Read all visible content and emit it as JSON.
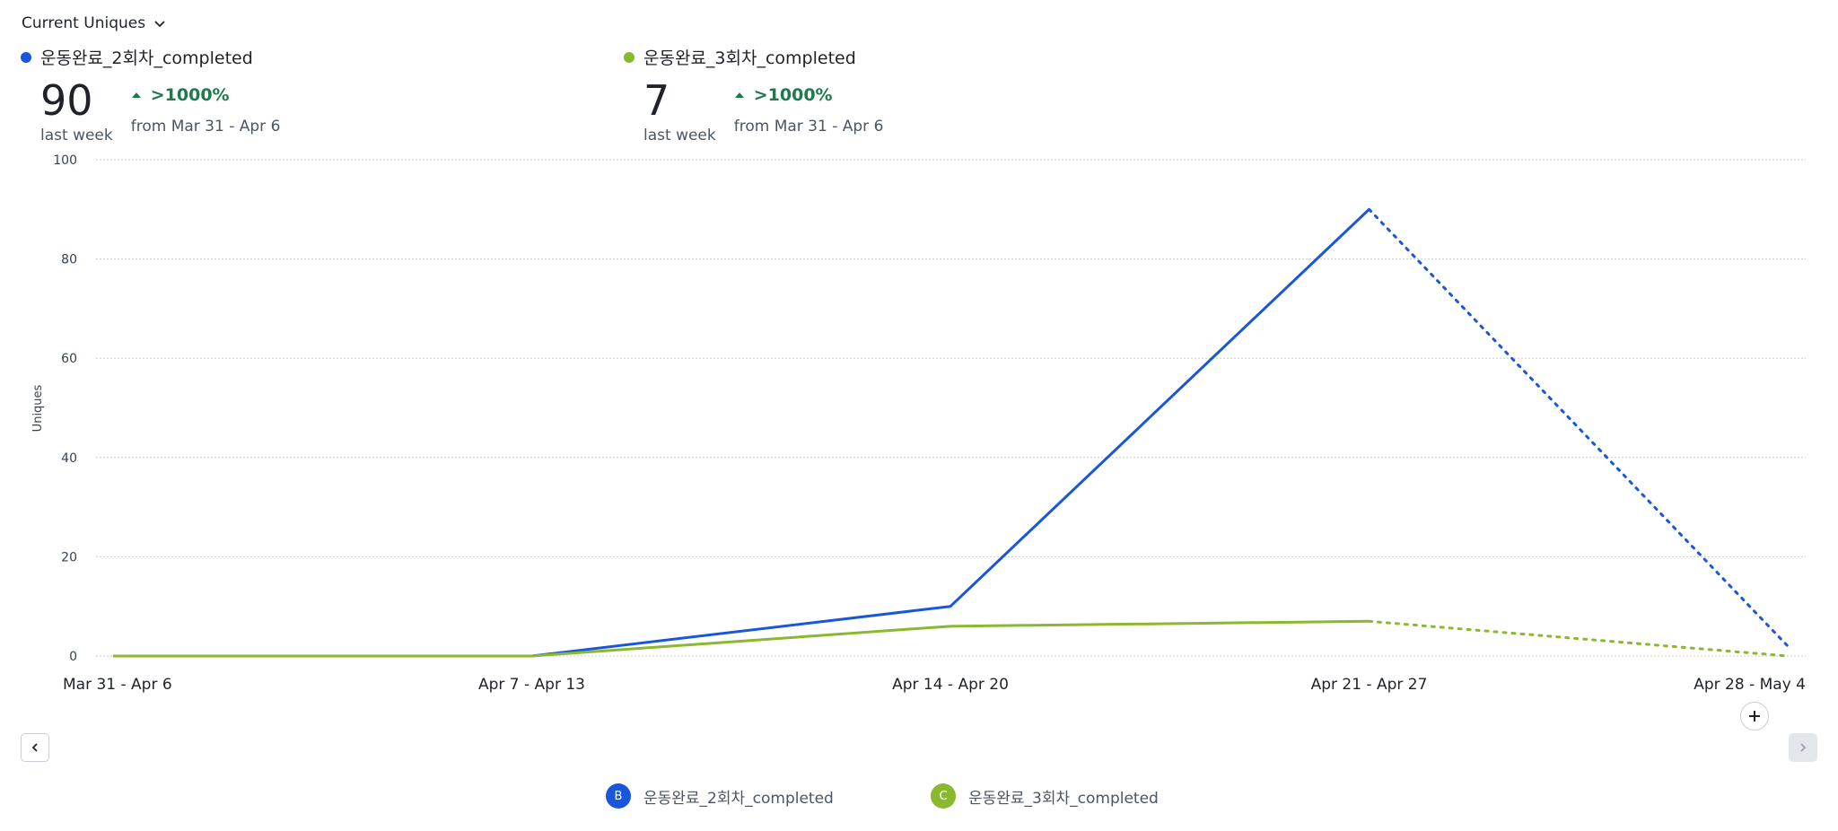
{
  "header": {
    "metric_label": "Current Uniques"
  },
  "summaries": [
    {
      "name": "운동완료_2회차_completed",
      "color": "#1a56db",
      "value": "90",
      "period": "last week",
      "delta": ">1000%",
      "delta_from": "from Mar 31 - Apr 6"
    },
    {
      "name": "운동완료_3회차_completed",
      "color": "#8ab82e",
      "value": "7",
      "period": "last week",
      "delta": ">1000%",
      "delta_from": "from Mar 31 - Apr 6"
    }
  ],
  "chart_data": {
    "type": "line",
    "ylabel": "Uniques",
    "ylim": [
      0,
      100
    ],
    "yticks": [
      0,
      20,
      40,
      60,
      80,
      100
    ],
    "grid": true,
    "categories": [
      "Mar 31 - Apr 6",
      "Apr 7 - Apr 13",
      "Apr 14 - Apr 20",
      "Apr 21 - Apr 27",
      "Apr 28 - May 4"
    ],
    "series": [
      {
        "name": "운동완료_2회차_completed",
        "values": [
          0,
          0,
          10,
          90,
          2
        ],
        "color": "#1a56db",
        "incomplete_from_index": 3
      },
      {
        "name": "운동완료_3회차_completed",
        "values": [
          0,
          0,
          6,
          7,
          0
        ],
        "color": "#8ab82e",
        "incomplete_from_index": 3
      }
    ]
  },
  "legend": [
    {
      "badge": "B",
      "label": "운동완료_2회차_completed",
      "color": "#1a56db"
    },
    {
      "badge": "C",
      "label": "운동완료_3회차_completed",
      "color": "#8ab82e"
    }
  ]
}
